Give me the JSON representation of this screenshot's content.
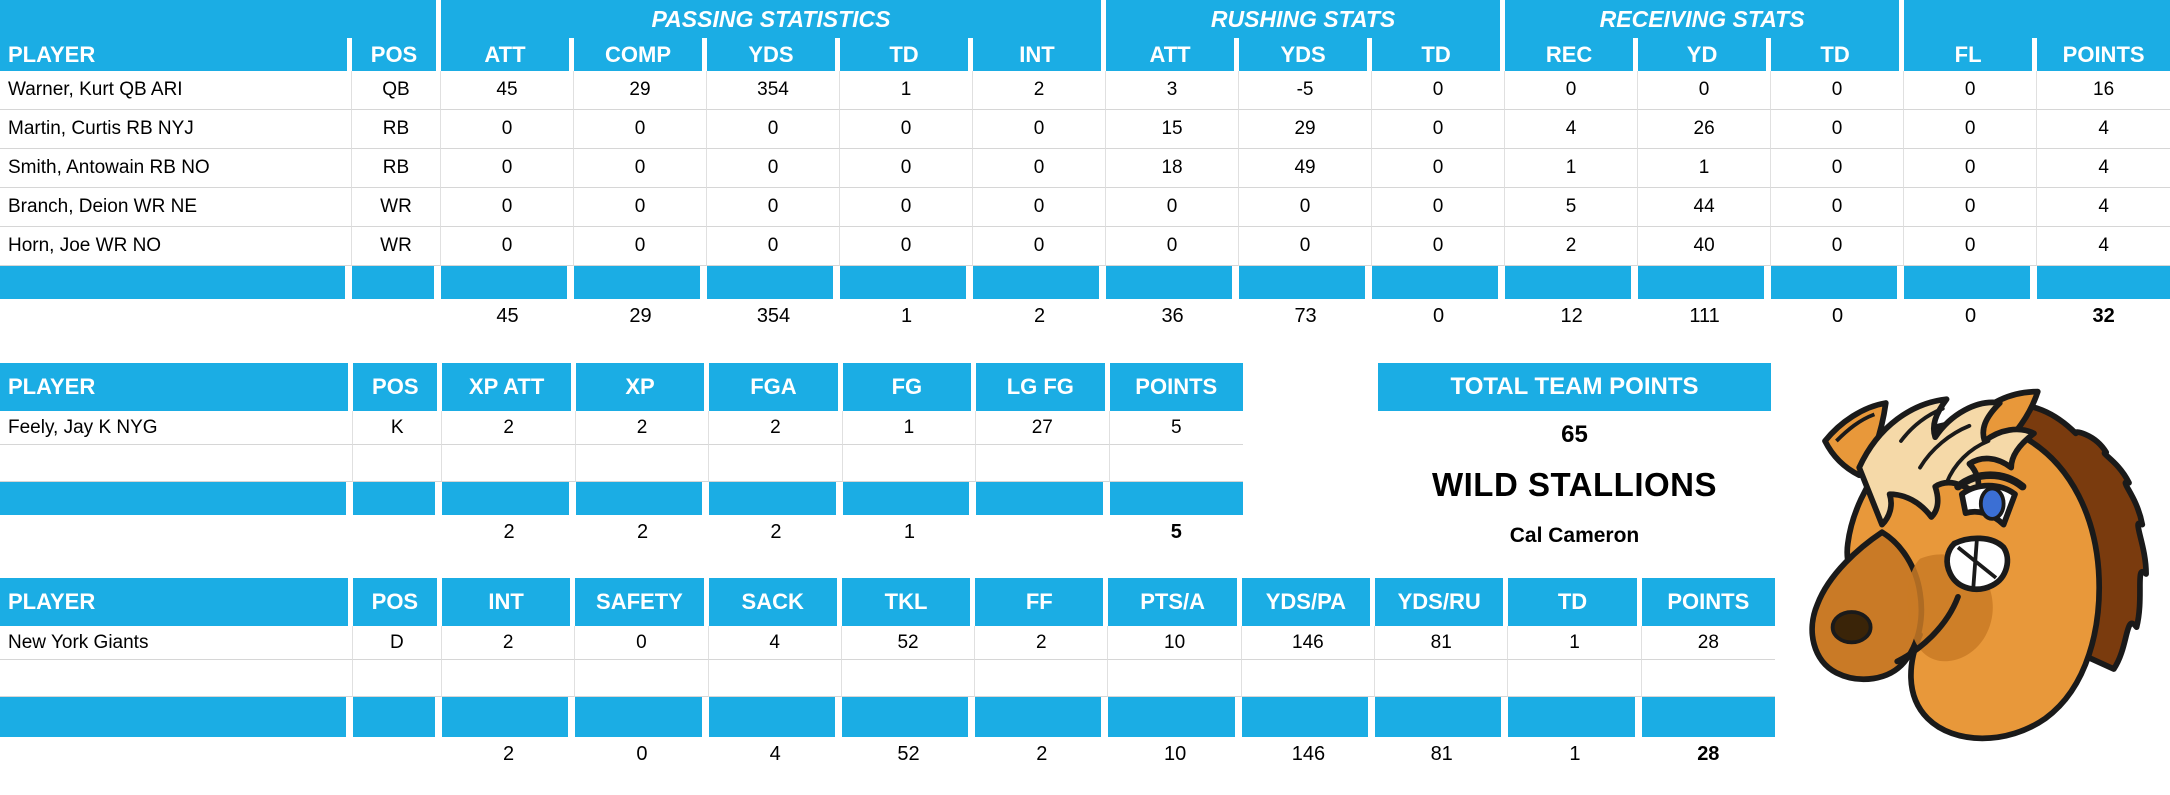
{
  "theme": {
    "accent": "#1BADE4",
    "grid": "#D6D6D6",
    "header_text": "#FFFFFF"
  },
  "offense_table": {
    "group_headers": [
      {
        "label": "",
        "span": 2
      },
      {
        "label": "PASSING STATISTICS",
        "span": 5
      },
      {
        "label": "RUSHING STATS",
        "span": 3
      },
      {
        "label": "RECEIVING STATS",
        "span": 3
      },
      {
        "label": "",
        "span": 2
      }
    ],
    "columns": [
      "PLAYER",
      "POS",
      "ATT",
      "COMP",
      "YDS",
      "TD",
      "INT",
      "ATT",
      "YDS",
      "TD",
      "REC",
      "YD",
      "TD",
      "FL",
      "POINTS"
    ],
    "rows": [
      [
        "Warner, Kurt QB ARI",
        "QB",
        "45",
        "29",
        "354",
        "1",
        "2",
        "3",
        "-5",
        "0",
        "0",
        "0",
        "0",
        "0",
        "16"
      ],
      [
        "Martin, Curtis RB NYJ",
        "RB",
        "0",
        "0",
        "0",
        "0",
        "0",
        "15",
        "29",
        "0",
        "4",
        "26",
        "0",
        "0",
        "4"
      ],
      [
        "Smith, Antowain RB NO",
        "RB",
        "0",
        "0",
        "0",
        "0",
        "0",
        "18",
        "49",
        "0",
        "1",
        "1",
        "0",
        "0",
        "4"
      ],
      [
        "Branch, Deion WR NE",
        "WR",
        "0",
        "0",
        "0",
        "0",
        "0",
        "0",
        "0",
        "0",
        "5",
        "44",
        "0",
        "0",
        "4"
      ],
      [
        "Horn, Joe WR NO",
        "WR",
        "0",
        "0",
        "0",
        "0",
        "0",
        "0",
        "0",
        "0",
        "2",
        "40",
        "0",
        "0",
        "4"
      ]
    ],
    "totals": [
      "",
      "",
      "45",
      "29",
      "354",
      "1",
      "2",
      "36",
      "73",
      "0",
      "12",
      "111",
      "0",
      "0",
      "32"
    ]
  },
  "kicker_table": {
    "columns": [
      "PLAYER",
      "POS",
      "XP ATT",
      "XP",
      "FGA",
      "FG",
      "LG FG",
      "POINTS"
    ],
    "rows": [
      [
        "Feely, Jay K NYG",
        "K",
        "2",
        "2",
        "2",
        "1",
        "27",
        "5"
      ]
    ],
    "totals": [
      "",
      "",
      "2",
      "2",
      "2",
      "1",
      "",
      "5"
    ]
  },
  "defense_table": {
    "columns": [
      "PLAYER",
      "POS",
      "INT",
      "SAFETY",
      "SACK",
      "TKL",
      "FF",
      "PTS/A",
      "YDS/PA",
      "YDS/RU",
      "TD",
      "POINTS"
    ],
    "rows": [
      [
        "New York Giants",
        "D",
        "2",
        "0",
        "4",
        "52",
        "2",
        "10",
        "146",
        "81",
        "1",
        "28"
      ]
    ],
    "totals": [
      "",
      "",
      "2",
      "0",
      "4",
      "52",
      "2",
      "10",
      "146",
      "81",
      "1",
      "28"
    ]
  },
  "team_summary": {
    "banner": "TOTAL TEAM POINTS",
    "total_points": "65",
    "team_name": "WILD STALLIONS",
    "owner": "Cal Cameron"
  },
  "mascot": {
    "icon": "horse-head-mascot"
  }
}
